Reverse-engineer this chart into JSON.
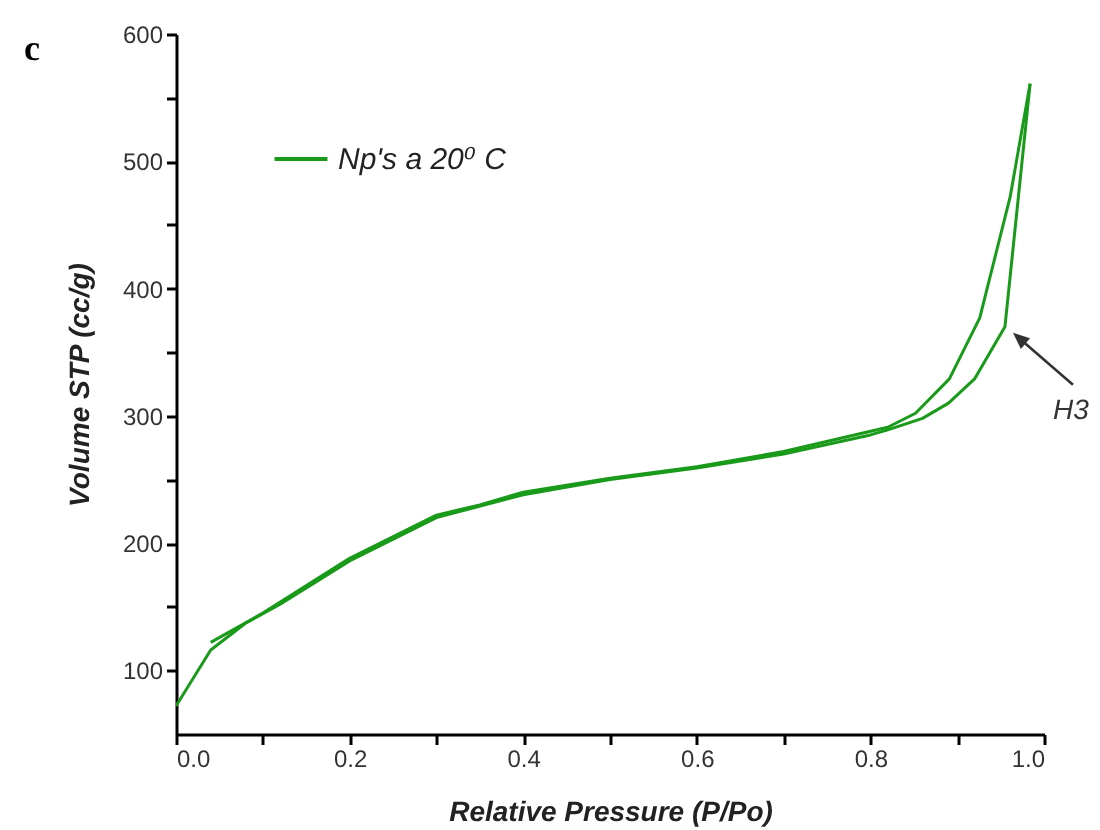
{
  "chart_data": {
    "type": "line",
    "title": "c",
    "xlabel": "Relative Pressure (P/Po)",
    "ylabel": "Volume STP (cc/g)",
    "xlim": [
      0,
      1.0
    ],
    "ylim": [
      50,
      600
    ],
    "xticks": [
      {
        "value": 0,
        "label": "0.0"
      },
      {
        "value": 0.1,
        "label": null
      },
      0.2,
      {
        "value": 0.3,
        "label": null
      },
      0.4,
      {
        "value": 0.5,
        "label": null
      },
      0.6,
      {
        "value": 0.7,
        "label": null
      },
      0.8,
      {
        "value": 0.9,
        "label": null
      },
      {
        "value": 1.0,
        "label": "1.0"
      }
    ],
    "yticks": [
      100,
      {
        "value": 150,
        "label": null
      },
      200,
      {
        "value": 250,
        "label": null
      },
      300,
      {
        "value": 350,
        "label": null
      },
      400,
      {
        "value": 450,
        "label": null
      },
      500,
      {
        "value": 550,
        "label": null
      },
      600
    ],
    "legend": "top left",
    "grid": false,
    "line_style": "solid",
    "marker": "none",
    "series": [
      {
        "name": "Np's a 20⁰ C",
        "color": "#1a9a1a",
        "x": [
          0,
          0.04,
          0.08,
          0.12,
          0.2,
          0.3,
          0.4,
          0.5,
          0.6,
          0.7,
          0.8,
          0.82,
          0.86,
          0.89,
          0.92,
          0.955,
          0.984
        ],
        "values": [
          72,
          116,
          137,
          152,
          186,
          220,
          238,
          250,
          259,
          270,
          285,
          289,
          298,
          310,
          329,
          370,
          561
        ]
      },
      {
        "color": "#1a9a1a",
        "x": [
          0.984,
          0.961,
          0.926,
          0.891,
          0.852,
          0.82,
          0.7,
          0.6,
          0.5,
          0.4,
          0.35,
          0.3,
          0.2,
          0.1,
          0.04
        ],
        "values": [
          561,
          472,
          377,
          329,
          302,
          291,
          272,
          260,
          251,
          240,
          230,
          222,
          188,
          145,
          122
        ]
      }
    ],
    "annotations": [
      {
        "text": "H3",
        "x": 0.955,
        "y": 370
      }
    ]
  }
}
